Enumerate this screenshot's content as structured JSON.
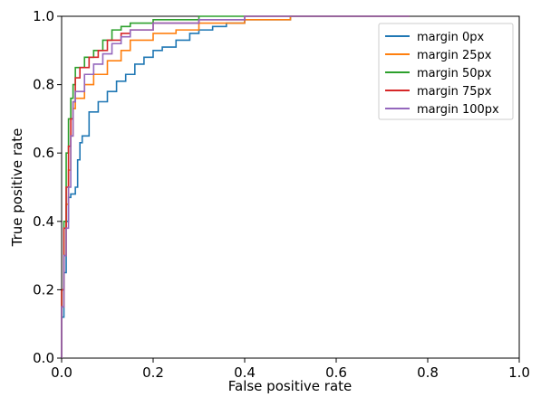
{
  "chart_data": {
    "type": "line",
    "xlabel": "False positive rate",
    "ylabel": "True positive rate",
    "xlim": [
      0.0,
      1.0
    ],
    "ylim": [
      0.0,
      1.0
    ],
    "x_ticks": [
      "0.0",
      "0.2",
      "0.4",
      "0.6",
      "0.8",
      "1.0"
    ],
    "y_ticks": [
      "0.0",
      "0.2",
      "0.4",
      "0.6",
      "0.8",
      "1.0"
    ],
    "grid": false,
    "legend_position": "top-right",
    "series": [
      {
        "name": "margin 0px",
        "color": "#1f77b4",
        "points": [
          [
            0.0,
            0.0
          ],
          [
            0.005,
            0.12
          ],
          [
            0.01,
            0.25
          ],
          [
            0.015,
            0.4
          ],
          [
            0.02,
            0.47
          ],
          [
            0.03,
            0.48
          ],
          [
            0.035,
            0.5
          ],
          [
            0.04,
            0.58
          ],
          [
            0.045,
            0.63
          ],
          [
            0.06,
            0.65
          ],
          [
            0.08,
            0.72
          ],
          [
            0.1,
            0.75
          ],
          [
            0.12,
            0.78
          ],
          [
            0.14,
            0.81
          ],
          [
            0.16,
            0.83
          ],
          [
            0.18,
            0.86
          ],
          [
            0.2,
            0.88
          ],
          [
            0.22,
            0.9
          ],
          [
            0.25,
            0.91
          ],
          [
            0.28,
            0.93
          ],
          [
            0.3,
            0.95
          ],
          [
            0.33,
            0.96
          ],
          [
            0.36,
            0.97
          ],
          [
            0.4,
            0.98
          ],
          [
            0.5,
            0.99
          ],
          [
            0.6,
            1.0
          ],
          [
            0.76,
            1.0
          ]
        ]
      },
      {
        "name": "margin 25px",
        "color": "#ff7f0e",
        "points": [
          [
            0.0,
            0.0
          ],
          [
            0.005,
            0.15
          ],
          [
            0.01,
            0.3
          ],
          [
            0.015,
            0.45
          ],
          [
            0.02,
            0.55
          ],
          [
            0.025,
            0.65
          ],
          [
            0.03,
            0.73
          ],
          [
            0.05,
            0.76
          ],
          [
            0.07,
            0.8
          ],
          [
            0.1,
            0.83
          ],
          [
            0.13,
            0.87
          ],
          [
            0.15,
            0.9
          ],
          [
            0.2,
            0.93
          ],
          [
            0.25,
            0.95
          ],
          [
            0.3,
            0.96
          ],
          [
            0.4,
            0.98
          ],
          [
            0.5,
            0.99
          ],
          [
            0.6,
            1.0
          ],
          [
            0.76,
            1.0
          ]
        ]
      },
      {
        "name": "margin 50px",
        "color": "#2ca02c",
        "points": [
          [
            0.0,
            0.0
          ],
          [
            0.005,
            0.2
          ],
          [
            0.01,
            0.4
          ],
          [
            0.015,
            0.6
          ],
          [
            0.02,
            0.7
          ],
          [
            0.025,
            0.76
          ],
          [
            0.03,
            0.8
          ],
          [
            0.05,
            0.85
          ],
          [
            0.07,
            0.88
          ],
          [
            0.09,
            0.9
          ],
          [
            0.11,
            0.93
          ],
          [
            0.13,
            0.96
          ],
          [
            0.15,
            0.97
          ],
          [
            0.2,
            0.98
          ],
          [
            0.3,
            0.99
          ],
          [
            0.4,
            1.0
          ],
          [
            0.76,
            1.0
          ]
        ]
      },
      {
        "name": "margin 75px",
        "color": "#d62728",
        "points": [
          [
            0.0,
            0.0
          ],
          [
            0.005,
            0.2
          ],
          [
            0.01,
            0.38
          ],
          [
            0.015,
            0.5
          ],
          [
            0.02,
            0.62
          ],
          [
            0.025,
            0.7
          ],
          [
            0.03,
            0.75
          ],
          [
            0.04,
            0.82
          ],
          [
            0.06,
            0.85
          ],
          [
            0.08,
            0.88
          ],
          [
            0.1,
            0.9
          ],
          [
            0.13,
            0.93
          ],
          [
            0.15,
            0.95
          ],
          [
            0.2,
            0.96
          ],
          [
            0.3,
            0.98
          ],
          [
            0.4,
            0.99
          ],
          [
            0.5,
            1.0
          ],
          [
            0.76,
            1.0
          ]
        ]
      },
      {
        "name": "margin 100px",
        "color": "#9467bd",
        "points": [
          [
            0.0,
            0.0
          ],
          [
            0.005,
            0.15
          ],
          [
            0.01,
            0.3
          ],
          [
            0.015,
            0.38
          ],
          [
            0.02,
            0.5
          ],
          [
            0.025,
            0.65
          ],
          [
            0.03,
            0.75
          ],
          [
            0.05,
            0.78
          ],
          [
            0.07,
            0.83
          ],
          [
            0.09,
            0.86
          ],
          [
            0.11,
            0.89
          ],
          [
            0.13,
            0.92
          ],
          [
            0.15,
            0.94
          ],
          [
            0.2,
            0.96
          ],
          [
            0.3,
            0.98
          ],
          [
            0.4,
            0.99
          ],
          [
            0.5,
            1.0
          ],
          [
            0.76,
            1.0
          ]
        ]
      }
    ]
  }
}
